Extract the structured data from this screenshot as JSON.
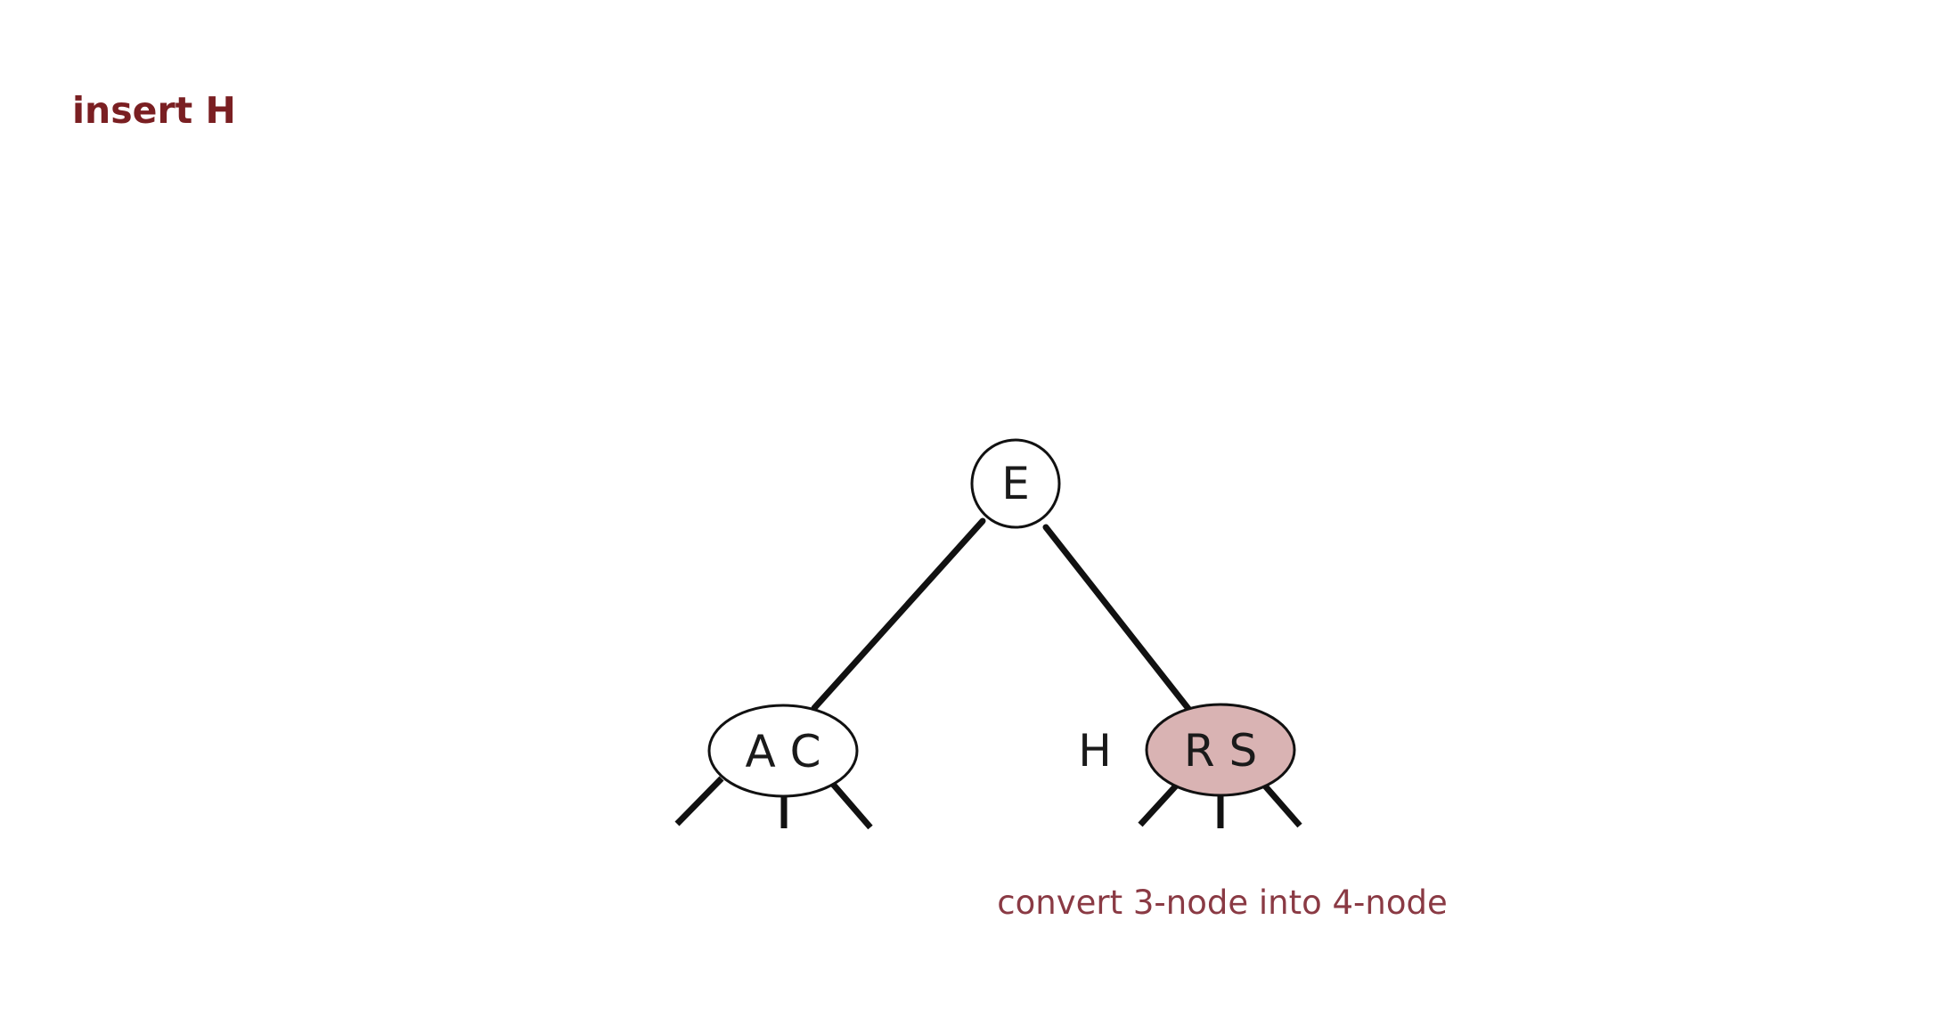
{
  "title": "insert H",
  "colors": {
    "title": "#7a1f22",
    "caption": "#8a3a44",
    "highlight_node_fill": "#d9b3b3",
    "node_fill": "#ffffff",
    "edge": "#111111"
  },
  "tree": {
    "root": {
      "label": "E"
    },
    "left_child": {
      "label": "A C"
    },
    "right_child": {
      "label": "R S",
      "highlighted": true
    },
    "inserted_key": "H"
  },
  "caption": "convert 3-node into 4-node"
}
